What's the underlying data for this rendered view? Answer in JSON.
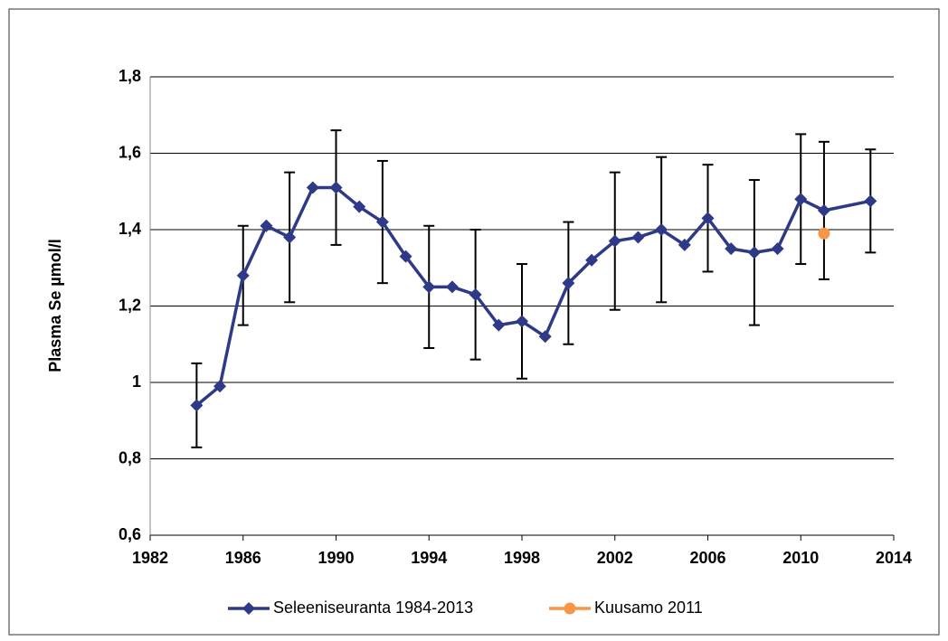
{
  "chart_data": {
    "type": "line",
    "y_label": "Plasma Se µmol/l",
    "xlim": [
      1982,
      2014
    ],
    "xticks": [
      1982,
      1986,
      1990,
      1994,
      1998,
      2002,
      2006,
      2010,
      2014
    ],
    "ylim": [
      0.6,
      1.8
    ],
    "yticks": [
      {
        "value": 0.6,
        "label": "0,6"
      },
      {
        "value": 0.8,
        "label": "0,8"
      },
      1,
      {
        "value": 1.2,
        "label": "1,2"
      },
      {
        "value": 1.4,
        "label": "1,4"
      },
      {
        "value": 1.6,
        "label": "1,6"
      },
      {
        "value": 1.8,
        "label": "1,8"
      }
    ],
    "grid": true,
    "series": [
      {
        "name": "Seleeniseuranta 1984-2013",
        "color": "#2e3a87",
        "marker": "diamond",
        "x": [
          1984,
          1985,
          1986,
          1987,
          1988,
          1989,
          1990,
          1991,
          1992,
          1993,
          1994,
          1995,
          1996,
          1997,
          1998,
          1999,
          2000,
          2001,
          2002,
          2003,
          2004,
          2005,
          2006,
          2007,
          2008,
          2009,
          2010,
          2011,
          2013
        ],
        "values": [
          0.94,
          0.99,
          1.28,
          1.41,
          1.38,
          1.51,
          1.51,
          1.46,
          1.42,
          1.33,
          1.25,
          1.25,
          1.23,
          1.15,
          1.16,
          1.12,
          1.26,
          1.32,
          1.37,
          1.38,
          1.4,
          1.36,
          1.43,
          1.35,
          1.34,
          1.35,
          1.48,
          1.45,
          1.475
        ],
        "errors": [
          0.11,
          null,
          0.13,
          null,
          0.17,
          null,
          0.15,
          null,
          0.16,
          null,
          0.16,
          null,
          0.17,
          null,
          0.15,
          null,
          0.16,
          null,
          0.18,
          null,
          0.19,
          null,
          0.14,
          null,
          0.19,
          null,
          0.17,
          0.18,
          0.135
        ]
      },
      {
        "name": "Kuusamo 2011",
        "color": "#f79646",
        "marker": "circle",
        "x": [
          2011
        ],
        "values": [
          1.39
        ]
      }
    ]
  }
}
